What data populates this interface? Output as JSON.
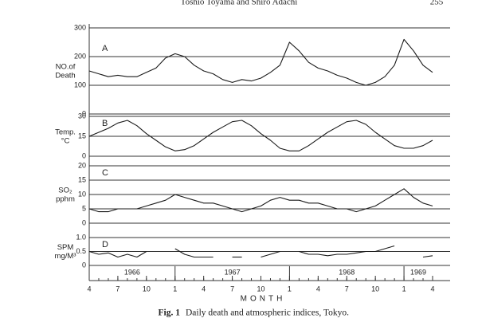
{
  "header": {
    "authors": "Toshio Toyama and Shiro Adachi",
    "page": "255"
  },
  "chart_data": {
    "type": "line",
    "x": [
      "1966-04",
      "1966-05",
      "1966-06",
      "1966-07",
      "1966-08",
      "1966-09",
      "1966-10",
      "1966-11",
      "1966-12",
      "1967-01",
      "1967-02",
      "1967-03",
      "1967-04",
      "1967-05",
      "1967-06",
      "1967-07",
      "1967-08",
      "1967-09",
      "1967-10",
      "1967-11",
      "1967-12",
      "1968-01",
      "1968-02",
      "1968-03",
      "1968-04",
      "1968-05",
      "1968-06",
      "1968-07",
      "1968-08",
      "1968-09",
      "1968-10",
      "1968-11",
      "1968-12",
      "1969-01",
      "1969-02",
      "1969-03",
      "1969-04"
    ],
    "xlim": [
      "1966-04",
      "1969-04"
    ],
    "xticks": [
      {
        "value": "1966-04",
        "label": "4"
      },
      {
        "value": "1966-07",
        "label": "7"
      },
      {
        "value": "1966-10",
        "label": "10"
      },
      {
        "value": "1967-01",
        "label": "1"
      },
      {
        "value": "1967-04",
        "label": "4"
      },
      {
        "value": "1967-07",
        "label": "7"
      },
      {
        "value": "1967-10",
        "label": "10"
      },
      {
        "value": "1968-01",
        "label": "1"
      },
      {
        "value": "1968-04",
        "label": "4"
      },
      {
        "value": "1968-07",
        "label": "7"
      },
      {
        "value": "1968-10",
        "label": "10"
      },
      {
        "value": "1969-01",
        "label": "1"
      },
      {
        "value": "1969-04",
        "label": "4"
      }
    ],
    "year_labels": [
      "1966",
      "1967",
      "1968",
      "1969"
    ],
    "xlabel": "MONTH",
    "panels": [
      {
        "label": "A",
        "ylabel": [
          "NO.of",
          "Death"
        ],
        "ylim": [
          0,
          300
        ],
        "yticks": [
          0,
          100,
          200,
          300
        ],
        "color": "#1a1a1a",
        "values": [
          150,
          140,
          130,
          135,
          130,
          130,
          145,
          160,
          195,
          210,
          200,
          170,
          150,
          140,
          120,
          110,
          120,
          115,
          125,
          145,
          170,
          250,
          220,
          180,
          160,
          150,
          135,
          125,
          110,
          100,
          110,
          130,
          170,
          260,
          220,
          170,
          145
        ]
      },
      {
        "label": "B",
        "ylabel": [
          "Temp.",
          "°C"
        ],
        "ylim": [
          0,
          30
        ],
        "yticks": [
          0,
          15,
          30
        ],
        "color": "#1a1a1a",
        "values": [
          15,
          18,
          21,
          25,
          27,
          23,
          17,
          12,
          7,
          4,
          5,
          8,
          13,
          18,
          22,
          26,
          27,
          23,
          17,
          12,
          6,
          4,
          4,
          8,
          13,
          18,
          22,
          26,
          27,
          24,
          18,
          13,
          8,
          6,
          6,
          8,
          12
        ]
      },
      {
        "label": "C",
        "ylabel": [
          "SO₂",
          "pphm"
        ],
        "ylim": [
          0,
          20
        ],
        "yticks": [
          0,
          5,
          10,
          15,
          20
        ],
        "color": "#1a1a1a",
        "values": [
          5,
          4,
          4,
          5,
          5,
          5,
          6,
          7,
          8,
          10,
          9,
          8,
          7,
          7,
          6,
          5,
          4,
          5,
          6,
          8,
          9,
          8,
          8,
          7,
          7,
          6,
          5,
          5,
          4,
          5,
          6,
          8,
          10,
          12,
          9,
          7,
          6
        ]
      },
      {
        "label": "D",
        "ylabel": [
          "SPM",
          "mg/M³"
        ],
        "ylim": [
          0,
          1
        ],
        "yticks": [
          0,
          0.5,
          {
            "value": 1,
            "label": "1.0"
          }
        ],
        "color": "#1a1a1a",
        "values": [
          0.5,
          0.4,
          0.45,
          0.3,
          0.4,
          0.3,
          0.5,
          null,
          null,
          0.6,
          0.4,
          0.3,
          0.3,
          0.3,
          null,
          0.3,
          0.3,
          null,
          0.3,
          0.4,
          0.5,
          null,
          0.5,
          0.4,
          0.4,
          0.35,
          0.4,
          0.4,
          0.45,
          0.5,
          0.5,
          0.6,
          0.7,
          null,
          null,
          0.3,
          0.35
        ]
      }
    ]
  },
  "caption": {
    "label": "Fig. 1",
    "text": "Daily death and atmospheric indices, Tokyo."
  }
}
